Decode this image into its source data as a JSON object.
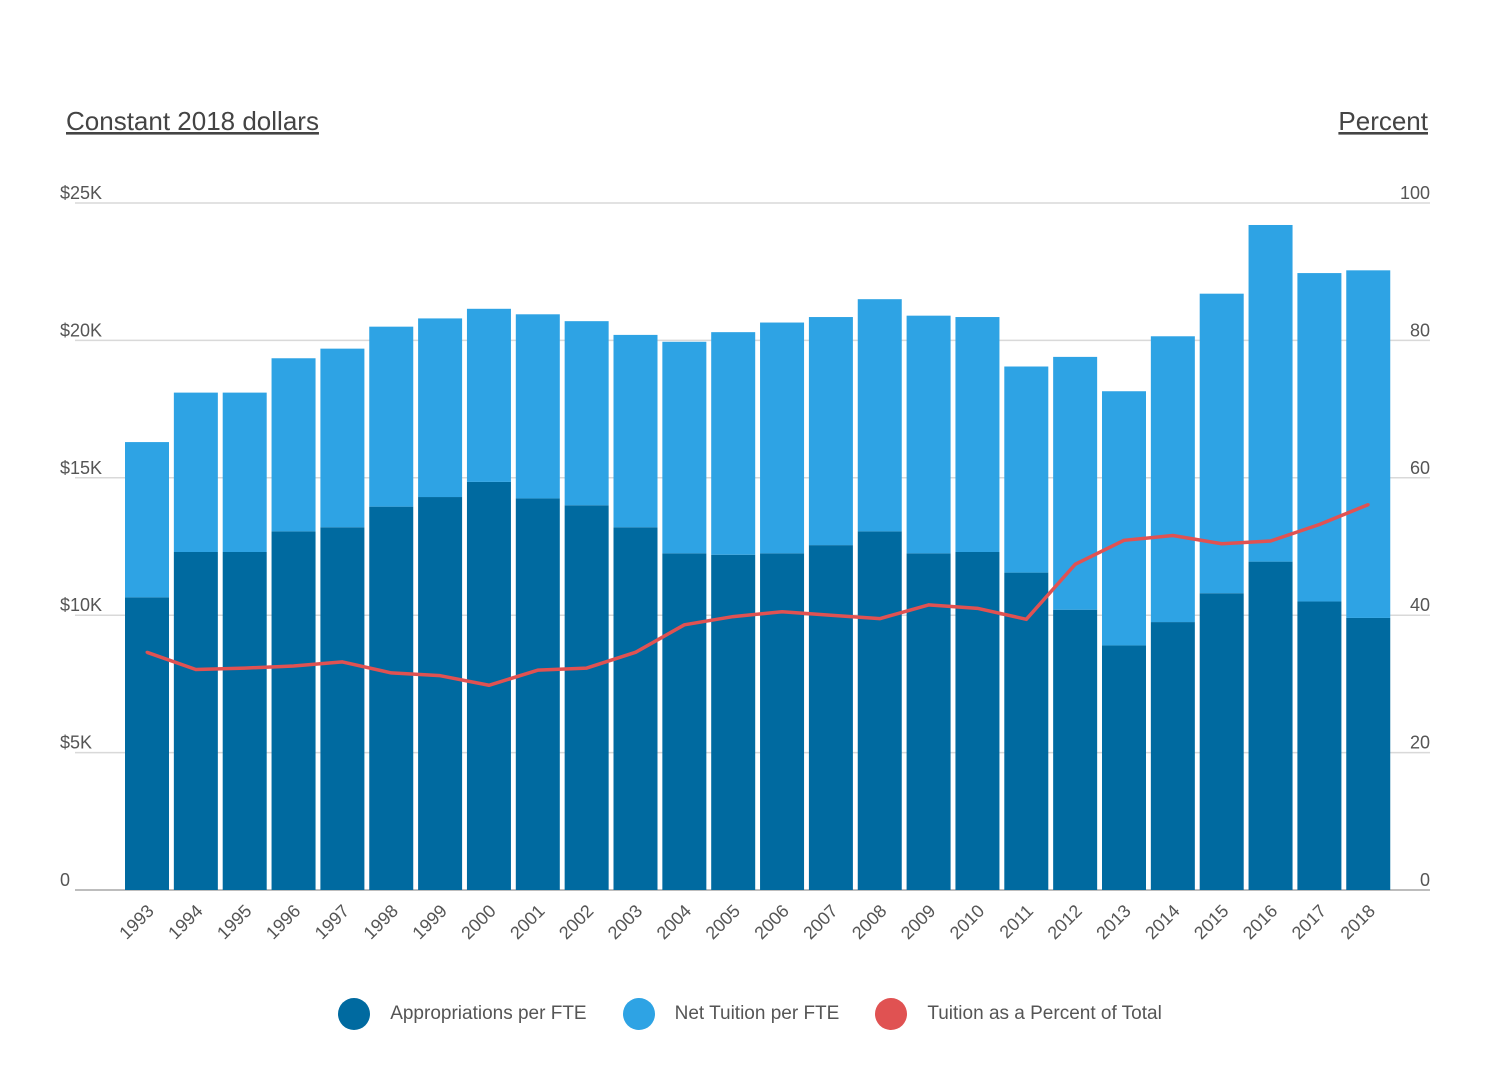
{
  "chart_data": {
    "type": "bar",
    "stacked": true,
    "left_axis_title": "Constant 2018 dollars",
    "right_axis_title": "Percent",
    "left_ticks": [
      "0",
      "$5K",
      "$10K",
      "$15K",
      "$20K",
      "$25K"
    ],
    "right_ticks": [
      "0",
      "20",
      "40",
      "60",
      "80",
      "100"
    ],
    "ylim_left": [
      0,
      25000
    ],
    "ylim_right": [
      0,
      100
    ],
    "grid": true,
    "legend_position": "bottom",
    "categories": [
      "1993",
      "1994",
      "1995",
      "1996",
      "1997",
      "1998",
      "1999",
      "2000",
      "2001",
      "2002",
      "2003",
      "2004",
      "2005",
      "2006",
      "2007",
      "2008",
      "2009",
      "2010",
      "2011",
      "2012",
      "2013",
      "2014",
      "2015",
      "2016",
      "2017",
      "2018"
    ],
    "series": [
      {
        "name": "Appropriations per FTE",
        "type": "bar",
        "axis": "left",
        "color": "#006aa0",
        "values": [
          10650,
          12300,
          12300,
          13050,
          13200,
          13950,
          14300,
          14850,
          14250,
          14000,
          13200,
          12250,
          12200,
          12250,
          12550,
          13050,
          12250,
          12300,
          11550,
          10200,
          8900,
          9750,
          10800,
          11950,
          10500,
          9900
        ]
      },
      {
        "name": "Net Tuition per FTE",
        "type": "bar",
        "axis": "left",
        "color": "#2ea3e4",
        "values": [
          5650,
          5800,
          5800,
          6300,
          6500,
          6550,
          6500,
          6300,
          6700,
          6700,
          7000,
          7700,
          8100,
          8400,
          8300,
          8450,
          8650,
          8550,
          7500,
          9200,
          9250,
          10400,
          10900,
          12250,
          11950,
          12650
        ]
      },
      {
        "name": "Tuition as a Percent of Total",
        "type": "line",
        "axis": "right",
        "color": "#e05252",
        "values": [
          34.6,
          32.1,
          32.3,
          32.6,
          33.2,
          31.6,
          31.2,
          29.8,
          32.0,
          32.3,
          34.6,
          38.6,
          39.8,
          40.5,
          40.0,
          39.5,
          41.5,
          41.0,
          39.4,
          47.4,
          50.9,
          51.6,
          50.4,
          50.8,
          53.2,
          56.1
        ]
      }
    ]
  }
}
